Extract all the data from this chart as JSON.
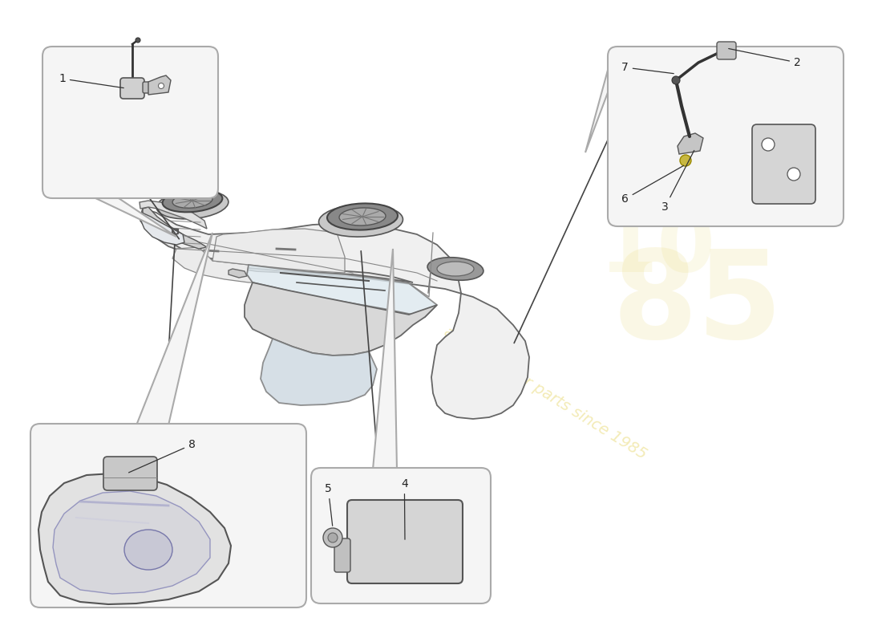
{
  "background_color": "#ffffff",
  "outline_color": "#555555",
  "box_fill": "#f5f5f5",
  "box_edge": "#aaaaaa",
  "car_fill": "#f0f0f0",
  "car_edge": "#666666",
  "watermark_color": "#e8d870",
  "watermark_alpha": 0.5,
  "part_line": "#333333",
  "part_fill": "#cccccc",
  "part_dark": "#444444",
  "part_yellow": "#c8b840"
}
